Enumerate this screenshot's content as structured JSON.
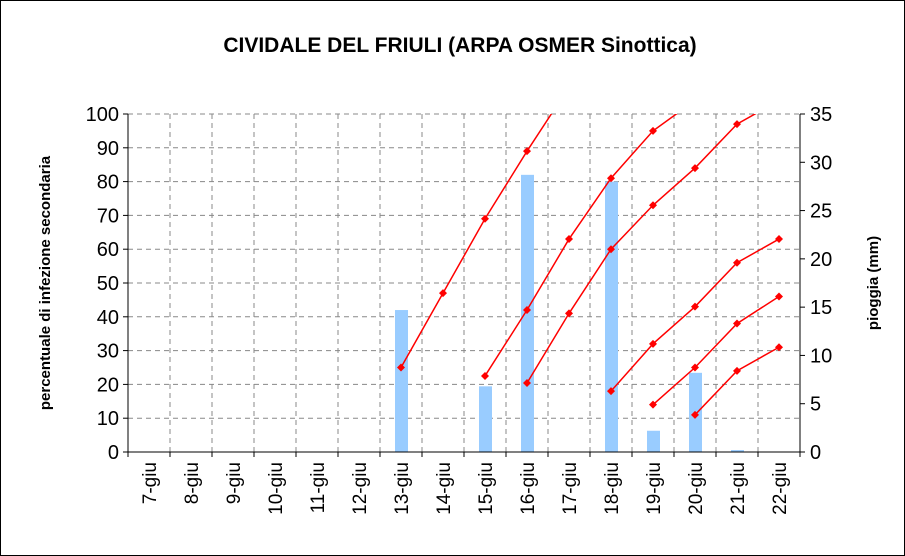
{
  "chart_data": {
    "type": "bar",
    "title": "CIVIDALE DEL FRIULI (ARPA OSMER Sinottica)",
    "ylabel": "percentuale di infezione secondaria",
    "y2label": "pioggia (mm)",
    "categories": [
      "7-giu",
      "8-giu",
      "9-giu",
      "10-giu",
      "11-giu",
      "12-giu",
      "13-giu",
      "14-giu",
      "15-giu",
      "16-giu",
      "17-giu",
      "18-giu",
      "19-giu",
      "20-giu",
      "21-giu",
      "22-giu"
    ],
    "ylim": [
      0,
      100
    ],
    "yticks": [
      0,
      10,
      20,
      30,
      40,
      50,
      60,
      70,
      80,
      90,
      100
    ],
    "y2lim": [
      0,
      35
    ],
    "y2ticks": [
      0,
      5,
      10,
      15,
      20,
      25,
      30,
      35
    ],
    "grid": true,
    "series": [
      {
        "type": "bar",
        "axis": "y2",
        "color": "#99ccff",
        "values": [
          null,
          null,
          null,
          null,
          null,
          null,
          14.7,
          null,
          6.8,
          28.7,
          null,
          28,
          2.2,
          8.2,
          0.2,
          null
        ]
      },
      {
        "type": "line",
        "color": "#ff0000",
        "values": [
          null,
          null,
          null,
          null,
          null,
          null,
          25,
          47,
          69,
          89,
          108,
          null,
          null,
          null,
          null,
          null
        ]
      },
      {
        "type": "line",
        "color": "#ff0000",
        "values": [
          null,
          null,
          null,
          null,
          null,
          null,
          null,
          null,
          22.5,
          42,
          63,
          81,
          95,
          104,
          null,
          null
        ]
      },
      {
        "type": "line",
        "color": "#ff0000",
        "values": [
          null,
          null,
          null,
          null,
          null,
          null,
          null,
          null,
          null,
          20.4,
          41,
          60,
          73,
          84,
          97,
          104
        ]
      },
      {
        "type": "line",
        "color": "#ff0000",
        "values": [
          null,
          null,
          null,
          null,
          null,
          null,
          null,
          null,
          null,
          null,
          null,
          18,
          32,
          43,
          56,
          63
        ]
      },
      {
        "type": "line",
        "color": "#ff0000",
        "values": [
          null,
          null,
          null,
          null,
          null,
          null,
          null,
          null,
          null,
          null,
          null,
          null,
          14,
          25,
          38,
          46
        ]
      },
      {
        "type": "line",
        "color": "#ff0000",
        "values": [
          null,
          null,
          null,
          null,
          null,
          null,
          null,
          null,
          null,
          null,
          null,
          null,
          null,
          11,
          24,
          31
        ]
      }
    ]
  }
}
